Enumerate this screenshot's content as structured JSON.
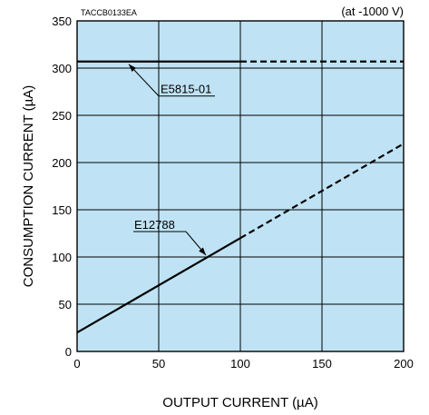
{
  "chart_data": {
    "type": "line",
    "code": "TACCB0133EA",
    "condition": "(at -1000 V)",
    "xlabel": "OUTPUT CURRENT (µA)",
    "ylabel": "CONSUMPTION CURRENT (µA)",
    "xlim": [
      0,
      200
    ],
    "ylim": [
      0,
      350
    ],
    "xticks": [
      0,
      50,
      100,
      150,
      200
    ],
    "yticks": [
      0,
      50,
      100,
      150,
      200,
      250,
      300,
      350
    ],
    "grid": true,
    "background_color": "#bfe3f4",
    "series": [
      {
        "name": "E5815-01",
        "segments": [
          {
            "style": "solid",
            "points": [
              [
                0,
                307
              ],
              [
                100,
                307
              ]
            ]
          },
          {
            "style": "dashed",
            "points": [
              [
                100,
                307
              ],
              [
                200,
                307
              ]
            ]
          }
        ]
      },
      {
        "name": "E12788",
        "segments": [
          {
            "style": "solid",
            "points": [
              [
                0,
                20
              ],
              [
                100,
                120
              ]
            ]
          },
          {
            "style": "dashed",
            "points": [
              [
                100,
                120
              ],
              [
                200,
                220
              ]
            ]
          }
        ]
      }
    ],
    "annotations": [
      {
        "text": "E5815-01",
        "points_to": [
          30,
          307
        ]
      },
      {
        "text": "E12788",
        "points_to": [
          80,
          100
        ]
      }
    ]
  }
}
